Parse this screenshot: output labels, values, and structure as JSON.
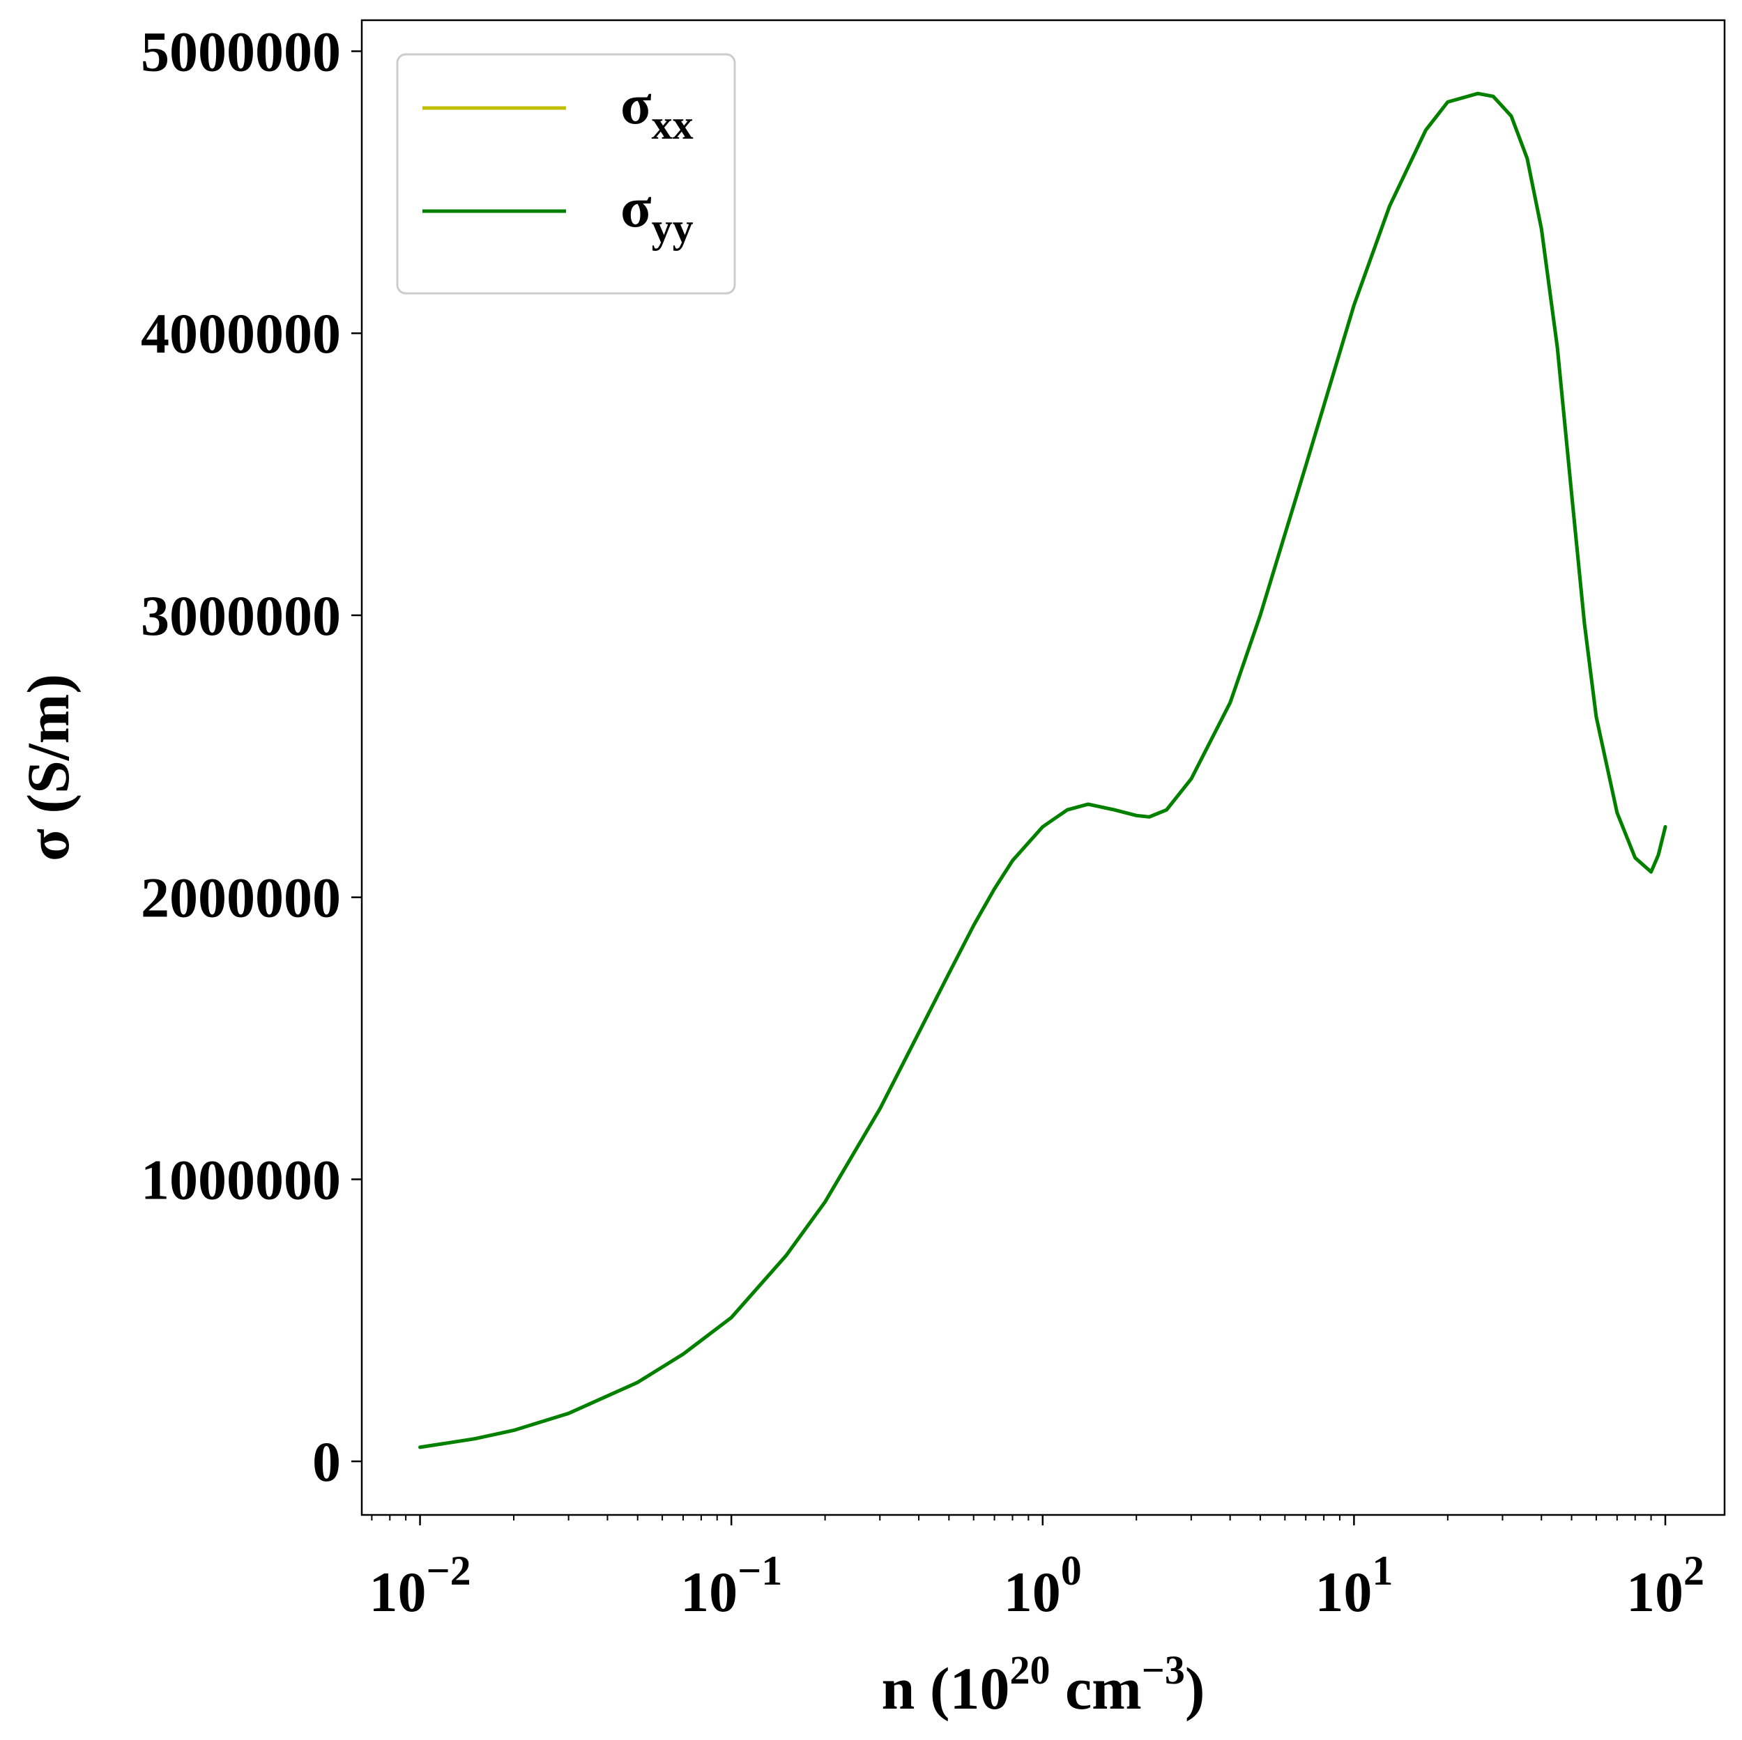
{
  "chart_data": {
    "type": "line",
    "title": "",
    "xlabel": "n (10^20 cm^-3)",
    "xlabel_parts": {
      "base": "n (10",
      "exp": "20",
      "unit": " cm",
      "unit_exp": "−3",
      "close": ")"
    },
    "ylabel": "σ (S/m)",
    "xscale": "log",
    "xlim": [
      0.0065,
      155
    ],
    "ylim": [
      -190000,
      5110000
    ],
    "x_ticks": [
      {
        "value": 0.01,
        "base": "10",
        "exp": "−2"
      },
      {
        "value": 0.1,
        "base": "10",
        "exp": "−1"
      },
      {
        "value": 1,
        "base": "10",
        "exp": "0"
      },
      {
        "value": 10,
        "base": "10",
        "exp": "1"
      },
      {
        "value": 100,
        "base": "10",
        "exp": "2"
      }
    ],
    "y_ticks": [
      {
        "value": 0,
        "label": "0"
      },
      {
        "value": 1000000,
        "label": "1000000"
      },
      {
        "value": 2000000,
        "label": "2000000"
      },
      {
        "value": 3000000,
        "label": "3000000"
      },
      {
        "value": 4000000,
        "label": "4000000"
      },
      {
        "value": 5000000,
        "label": "5000000"
      }
    ],
    "grid": false,
    "legend": {
      "placement": "top-left"
    },
    "series": [
      {
        "name": "σxx",
        "name_base": "σ",
        "name_sub": "xx",
        "color": "#bfbf00",
        "x": [
          0.01,
          0.015,
          0.02,
          0.03,
          0.05,
          0.07,
          0.1,
          0.15,
          0.2,
          0.3,
          0.4,
          0.5,
          0.6,
          0.7,
          0.8,
          1.0,
          1.2,
          1.4,
          1.7,
          2.0,
          2.2,
          2.5,
          3.0,
          4.0,
          5.0,
          7.0,
          10,
          13,
          17,
          20,
          25,
          28,
          32,
          36,
          40,
          45,
          50,
          55,
          60,
          70,
          80,
          90,
          95,
          100
        ],
        "y": [
          50000,
          80000,
          110000,
          170000,
          280000,
          380000,
          510000,
          730000,
          920000,
          1250000,
          1520000,
          1730000,
          1900000,
          2030000,
          2130000,
          2250000,
          2310000,
          2330000,
          2310000,
          2290000,
          2285000,
          2310000,
          2420000,
          2690000,
          3000000,
          3530000,
          4100000,
          4450000,
          4720000,
          4820000,
          4850000,
          4840000,
          4770000,
          4620000,
          4370000,
          3950000,
          3430000,
          2970000,
          2640000,
          2300000,
          2140000,
          2090000,
          2150000,
          2250000
        ]
      },
      {
        "name": "σyy",
        "name_base": "σ",
        "name_sub": "yy",
        "color": "#008000",
        "x": [
          0.01,
          0.015,
          0.02,
          0.03,
          0.05,
          0.07,
          0.1,
          0.15,
          0.2,
          0.3,
          0.4,
          0.5,
          0.6,
          0.7,
          0.8,
          1.0,
          1.2,
          1.4,
          1.7,
          2.0,
          2.2,
          2.5,
          3.0,
          4.0,
          5.0,
          7.0,
          10,
          13,
          17,
          20,
          25,
          28,
          32,
          36,
          40,
          45,
          50,
          55,
          60,
          70,
          80,
          90,
          95,
          100
        ],
        "y": [
          50000,
          80000,
          110000,
          170000,
          280000,
          380000,
          510000,
          730000,
          920000,
          1250000,
          1520000,
          1730000,
          1900000,
          2030000,
          2130000,
          2250000,
          2310000,
          2330000,
          2310000,
          2290000,
          2285000,
          2310000,
          2420000,
          2690000,
          3000000,
          3530000,
          4100000,
          4450000,
          4720000,
          4820000,
          4850000,
          4840000,
          4770000,
          4620000,
          4370000,
          3950000,
          3430000,
          2970000,
          2640000,
          2300000,
          2140000,
          2090000,
          2150000,
          2250000
        ]
      }
    ]
  }
}
